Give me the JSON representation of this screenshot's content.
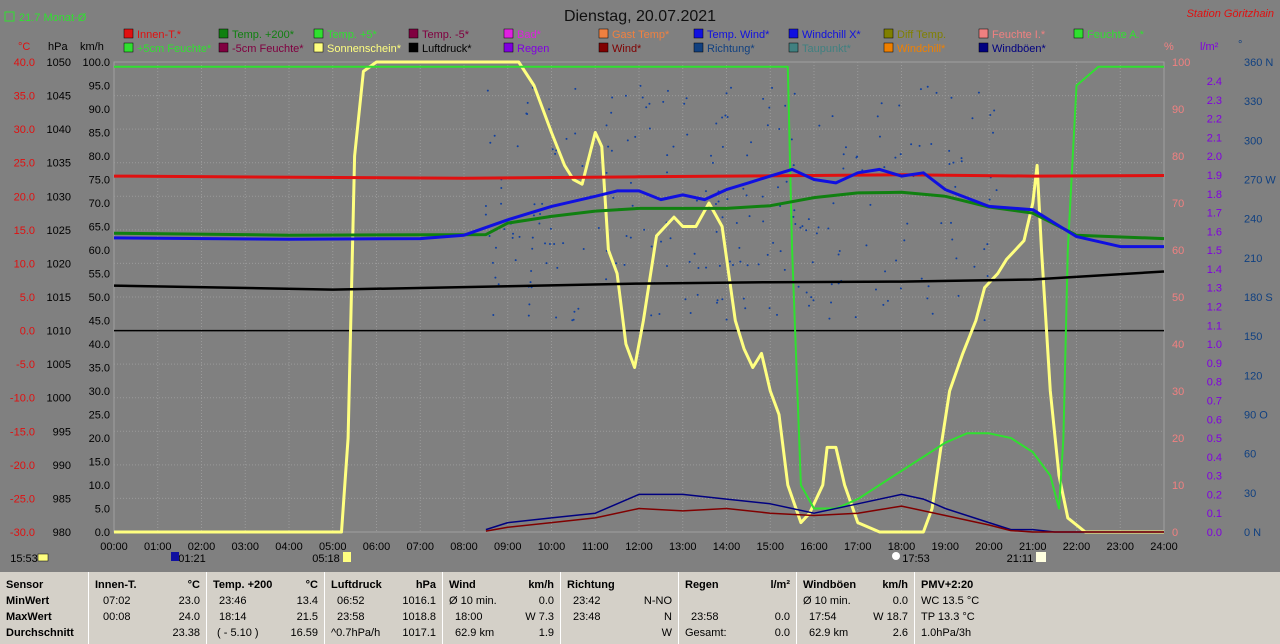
{
  "header": {
    "title": "Dienstag, 20.07.2021",
    "station": "Station Göritzhain",
    "month_label": "21.7 Monat-Ø"
  },
  "legend": [
    {
      "label": "Innen-T.*",
      "color": "#e01010"
    },
    {
      "label": "Temp. +200*",
      "color": "#108010"
    },
    {
      "label": "Temp. +5*",
      "color": "#30e030"
    },
    {
      "label": "Temp. -5*",
      "color": "#800040"
    },
    {
      "label": "Bad*",
      "color": "#e020e0"
    },
    {
      "label": "Gast Temp*",
      "color": "#f08040"
    },
    {
      "label": "Temp. Wind*",
      "color": "#1010e0"
    },
    {
      "label": "Windchill X*",
      "color": "#1010e0"
    },
    {
      "label": "Diff Temp.",
      "color": "#808000"
    },
    {
      "label": "Feuchte I.*",
      "color": "#f08080"
    },
    {
      "label": "Feuchte A.*",
      "color": "#30e030"
    },
    {
      "label": "+5cm Feuchte*",
      "color": "#30e030"
    },
    {
      "label": "-5cm Feuchte*",
      "color": "#800040"
    },
    {
      "label": "Sonnenschein*",
      "color": "#ffff80"
    },
    {
      "label": "Luftdruck*",
      "color": "#000000"
    },
    {
      "label": "Regen",
      "color": "#8000e0"
    },
    {
      "label": "Wind*",
      "color": "#800000"
    },
    {
      "label": "Richtung*",
      "color": "#104080"
    },
    {
      "label": "Taupunkt*",
      "color": "#408080"
    },
    {
      "label": "Windchill*",
      "color": "#f08000"
    },
    {
      "label": "Windböen*",
      "color": "#000080"
    }
  ],
  "axes": {
    "unit_temp": "°C",
    "unit_hpa": "hPa",
    "unit_kmh": "km/h",
    "unit_pct": "%",
    "unit_rain": "l/m²",
    "unit_deg": "°",
    "temp_ticks": [
      "40.0",
      "35.0",
      "30.0",
      "25.0",
      "20.0",
      "15.0",
      "10.0",
      "5.0",
      "0.0",
      "-5.0",
      "-10.0",
      "-15.0",
      "-20.0",
      "-25.0",
      "-30.0"
    ],
    "hpa_ticks": [
      "1050",
      "1045",
      "1040",
      "1035",
      "1030",
      "1025",
      "1020",
      "1015",
      "1010",
      "1005",
      "1000",
      "995",
      "990",
      "985",
      "980"
    ],
    "kmh_ticks": [
      "100.0",
      "95.0",
      "90.0",
      "85.0",
      "80.0",
      "75.0",
      "70.0",
      "65.0",
      "60.0",
      "55.0",
      "50.0",
      "45.0",
      "40.0",
      "35.0",
      "30.0",
      "25.0",
      "20.0",
      "15.0",
      "10.0",
      "5.0",
      "0.0"
    ],
    "pct_ticks": [
      "100",
      "90",
      "80",
      "70",
      "60",
      "50",
      "40",
      "30",
      "20",
      "10",
      "0"
    ],
    "rain_ticks": [
      "2.4",
      "2.3",
      "2.2",
      "2.1",
      "2.0",
      "1.9",
      "1.8",
      "1.7",
      "1.6",
      "1.5",
      "1.4",
      "1.3",
      "1.2",
      "1.1",
      "1.0",
      "0.9",
      "0.8",
      "0.7",
      "0.6",
      "0.5",
      "0.4",
      "0.3",
      "0.2",
      "0.1",
      "0.0"
    ],
    "dir_ticks": [
      "360 N",
      "330",
      "300",
      "270 W",
      "240",
      "210",
      "180 S",
      "150",
      "120",
      "90 O",
      "60",
      "30",
      "0   N"
    ],
    "time_ticks": [
      "00:00",
      "01:00",
      "02:00",
      "03:00",
      "04:00",
      "05:00",
      "06:00",
      "07:00",
      "08:00",
      "09:00",
      "10:00",
      "11:00",
      "12:00",
      "13:00",
      "14:00",
      "15:00",
      "16:00",
      "17:00",
      "18:00",
      "19:00",
      "20:00",
      "21:00",
      "22:00",
      "23:00",
      "24:00"
    ]
  },
  "markers": {
    "left": "15:53",
    "moonrise": "01:21",
    "sunrise": "05:18",
    "sunset": "17:53",
    "moonset": "21:11"
  },
  "chart_data": {
    "type": "line",
    "title": "Dienstag, 20.07.2021",
    "x_unit": "hours",
    "ylim_kmh": [
      0,
      100
    ],
    "grid": true,
    "series": [
      {
        "name": "Sonnenschein*",
        "unit": "km/h-scale",
        "color": "#ffff80",
        "points": [
          [
            0,
            0
          ],
          [
            5.2,
            0
          ],
          [
            5.35,
            20
          ],
          [
            5.5,
            80
          ],
          [
            5.7,
            98
          ],
          [
            6,
            100
          ],
          [
            9.25,
            100
          ],
          [
            9.6,
            95
          ],
          [
            10,
            85
          ],
          [
            10.3,
            78
          ],
          [
            10.5,
            75
          ],
          [
            10.7,
            74
          ],
          [
            11,
            85
          ],
          [
            11.15,
            82
          ],
          [
            11.3,
            60
          ],
          [
            11.5,
            55
          ],
          [
            11.7,
            40
          ],
          [
            11.9,
            35
          ],
          [
            12.1,
            45
          ],
          [
            12.4,
            63
          ],
          [
            12.8,
            67
          ],
          [
            13,
            65
          ],
          [
            13.3,
            65
          ],
          [
            13.6,
            70
          ],
          [
            13.9,
            65
          ],
          [
            14.2,
            45
          ],
          [
            14.4,
            39
          ],
          [
            14.6,
            35
          ],
          [
            14.8,
            38
          ],
          [
            15,
            30
          ],
          [
            15.2,
            25
          ],
          [
            15.4,
            10
          ],
          [
            15.7,
            2
          ],
          [
            15.9,
            4
          ],
          [
            16.2,
            10
          ],
          [
            16.3,
            18
          ],
          [
            16.5,
            18
          ],
          [
            16.7,
            10
          ],
          [
            17,
            2
          ],
          [
            17.5,
            0
          ],
          [
            18.5,
            0
          ],
          [
            18.7,
            5
          ],
          [
            18.9,
            18
          ],
          [
            19.1,
            30
          ],
          [
            19.4,
            38
          ],
          [
            19.7,
            45
          ],
          [
            19.9,
            52
          ],
          [
            20.2,
            55
          ],
          [
            20.4,
            58
          ],
          [
            20.6,
            60
          ],
          [
            20.8,
            62
          ],
          [
            21,
            70
          ],
          [
            21.1,
            78
          ],
          [
            21.2,
            60
          ],
          [
            21.4,
            30
          ],
          [
            21.6,
            12
          ],
          [
            21.8,
            3
          ],
          [
            22.2,
            0
          ],
          [
            24,
            0
          ]
        ]
      },
      {
        "name": "Feuchte A.*",
        "unit": "%",
        "color": "#30e030",
        "points": [
          [
            0,
            99
          ],
          [
            15.4,
            99
          ],
          [
            15.5,
            60
          ],
          [
            15.7,
            10
          ],
          [
            16,
            5
          ],
          [
            16.5,
            5
          ],
          [
            17,
            7
          ],
          [
            18,
            13
          ],
          [
            19,
            19
          ],
          [
            19.5,
            21
          ],
          [
            20,
            21
          ],
          [
            20.5,
            20
          ],
          [
            21,
            17
          ],
          [
            21.4,
            12
          ],
          [
            21.6,
            5
          ],
          [
            21.7,
            20
          ],
          [
            21.8,
            60
          ],
          [
            22,
            95
          ],
          [
            22.5,
            99
          ],
          [
            24,
            99
          ]
        ]
      },
      {
        "name": "Innen-T.*",
        "unit": "°C",
        "color": "#e01010",
        "points": [
          [
            0,
            23.0
          ],
          [
            8,
            22.7
          ],
          [
            12,
            22.9
          ],
          [
            18,
            23.2
          ],
          [
            21,
            23.0
          ],
          [
            24,
            23.1
          ]
        ]
      },
      {
        "name": "Temp. +200*",
        "unit": "°C",
        "color": "#108010",
        "points": [
          [
            0,
            14.5
          ],
          [
            4,
            14.2
          ],
          [
            8.5,
            14.3
          ],
          [
            9,
            16.0
          ],
          [
            10,
            17.0
          ],
          [
            11,
            17.8
          ],
          [
            12,
            18.2
          ],
          [
            13,
            18.2
          ],
          [
            14,
            18.2
          ],
          [
            15,
            18.6
          ],
          [
            16,
            19.8
          ],
          [
            17,
            20.5
          ],
          [
            18,
            20.6
          ],
          [
            19,
            20.0
          ],
          [
            20,
            18.4
          ],
          [
            21,
            17.5
          ],
          [
            22,
            14.2
          ],
          [
            24,
            13.7
          ]
        ]
      },
      {
        "name": "Temp. Wind*",
        "unit": "°C",
        "color": "#1010e0",
        "points": [
          [
            0,
            13.8
          ],
          [
            4,
            13.6
          ],
          [
            7,
            13.7
          ],
          [
            8,
            14.2
          ],
          [
            9,
            16.5
          ],
          [
            10,
            18.5
          ],
          [
            11,
            20.0
          ],
          [
            11.5,
            20.8
          ],
          [
            12,
            20.8
          ],
          [
            12.5,
            19.5
          ],
          [
            13,
            20.2
          ],
          [
            13.5,
            19.5
          ],
          [
            14,
            21.0
          ],
          [
            14.5,
            22.0
          ],
          [
            15,
            23.0
          ],
          [
            15.5,
            24.0
          ],
          [
            16,
            22.5
          ],
          [
            16.5,
            22.0
          ],
          [
            17,
            23.5
          ],
          [
            17.5,
            24.0
          ],
          [
            18,
            23.0
          ],
          [
            18.5,
            23.5
          ],
          [
            19,
            21.0
          ],
          [
            20,
            18.5
          ],
          [
            21,
            18.0
          ],
          [
            21.5,
            16.0
          ],
          [
            22,
            14.0
          ],
          [
            23,
            12.5
          ],
          [
            24,
            12.5
          ]
        ]
      },
      {
        "name": "Luftdruck*",
        "unit": "hPa",
        "color": "#000000",
        "points": [
          [
            0,
            1016.7
          ],
          [
            5,
            1016.1
          ],
          [
            9,
            1016.6
          ],
          [
            12,
            1017.0
          ],
          [
            15,
            1017.2
          ],
          [
            18,
            1017.3
          ],
          [
            21,
            1017.6
          ],
          [
            24,
            1018.8
          ]
        ]
      },
      {
        "name": "Windböen*",
        "unit": "km/h",
        "color": "#000080",
        "points": [
          [
            8.5,
            0.5
          ],
          [
            9,
            2
          ],
          [
            10,
            3
          ],
          [
            11,
            4
          ],
          [
            12,
            8
          ],
          [
            13,
            8
          ],
          [
            14,
            7
          ],
          [
            15,
            6
          ],
          [
            15.5,
            5
          ],
          [
            16,
            4
          ],
          [
            17,
            6
          ],
          [
            18,
            8
          ],
          [
            18.5,
            7
          ],
          [
            19,
            5
          ],
          [
            20,
            2
          ],
          [
            20.5,
            0.5
          ],
          [
            21,
            0.5
          ],
          [
            21.5,
            0
          ],
          [
            24,
            0
          ]
        ]
      },
      {
        "name": "Wind*",
        "unit": "km/h",
        "color": "#800000",
        "points": [
          [
            8.5,
            0.2
          ],
          [
            9,
            1
          ],
          [
            10,
            2
          ],
          [
            11,
            3
          ],
          [
            12,
            5
          ],
          [
            13,
            4.5
          ],
          [
            14,
            5
          ],
          [
            15,
            4
          ],
          [
            16,
            3.5
          ],
          [
            17,
            4
          ],
          [
            18,
            5.5
          ],
          [
            19,
            3.5
          ],
          [
            20,
            1.5
          ],
          [
            20.5,
            0.3
          ],
          [
            21,
            0
          ],
          [
            24,
            0
          ]
        ]
      }
    ]
  },
  "stats": {
    "labels": {
      "sensor": "Sensor",
      "min": "MinWert",
      "max": "MaxWert",
      "avg": "Durchschnitt"
    },
    "innen": {
      "head": "Innen-T.",
      "unit": "°C",
      "min_t": "07:02",
      "min_v": "23.0",
      "max_t": "00:08",
      "max_v": "24.0",
      "avg": "23.38"
    },
    "temp200": {
      "head": "Temp. +200",
      "unit": "°C",
      "min_t": "23:46",
      "min_v": "13.4",
      "max_t": "18:14",
      "max_v": "21.5",
      "avg_t": "( - 5.10 )",
      "avg": "16.59"
    },
    "druck": {
      "head": "Luftdruck",
      "unit": "hPa",
      "min_t": "06:52",
      "min_v": "1016.1",
      "max_t": "23:58",
      "max_v": "1018.8",
      "avg_t": "^0.7hPa/h",
      "avg": "1017.1"
    },
    "wind": {
      "head": "Wind",
      "unit": "km/h",
      "min_t": "Ø 10 min.",
      "min_v": "0.0",
      "max_t": "18:00",
      "max_v": "W 7.3",
      "avg_t": "62.9 km",
      "avg": "1.9"
    },
    "richtung": {
      "head": "Richtung",
      "unit": "",
      "min_t": "23:42",
      "min_v": "N-NO",
      "max_t": "23:48",
      "max_v": "N",
      "avg_t": "",
      "avg": "W"
    },
    "regen": {
      "head": "Regen",
      "unit": "l/m²",
      "min_t": "",
      "min_v": "",
      "max_t": "23:58",
      "max_v": "0.0",
      "avg_t": "Gesamt:",
      "avg": "0.0"
    },
    "boeen": {
      "head": "Windböen",
      "unit": "km/h",
      "min_t": "Ø 10 min.",
      "min_v": "0.0",
      "max_t": "17:54",
      "max_v": "W 18.7",
      "avg_t": "62.9 km",
      "avg": "2.6"
    },
    "pmv": {
      "head": "PMV+2:20",
      "l1": "WC 13.5 °C",
      "l2": "TP 13.3 °C",
      "l3": "1.0hPa/3h"
    }
  }
}
